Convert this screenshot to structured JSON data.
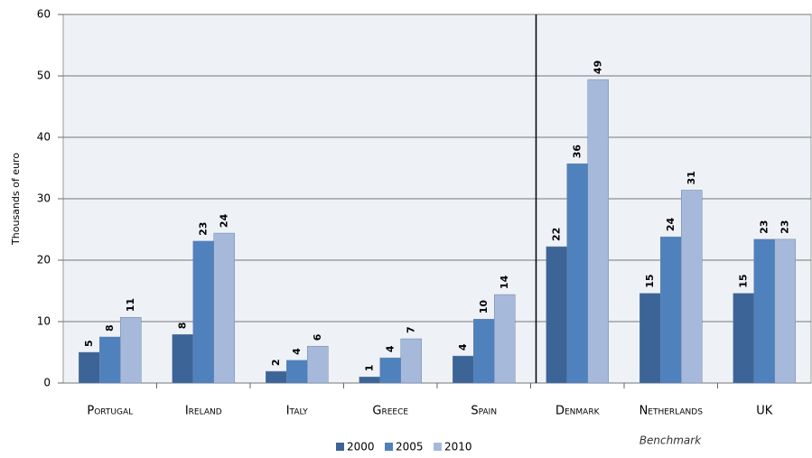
{
  "chart_data": {
    "type": "bar",
    "ylabel": "Thousands of euro",
    "annotation": "Benchmark",
    "categories": [
      "Portugal",
      "Ireland",
      "Italy",
      "Greece",
      "Spain",
      "Denmark",
      "Netherlands",
      "UK"
    ],
    "series": [
      {
        "name": "2000",
        "color": "#3d6496",
        "values": [
          5.0,
          7.9,
          1.9,
          1.0,
          4.4,
          22.2,
          14.6,
          14.6
        ],
        "value_labels": [
          "5",
          "8",
          "2",
          "1",
          "4",
          "22",
          "15",
          "15"
        ]
      },
      {
        "name": "2005",
        "color": "#4f81bd",
        "values": [
          7.5,
          23.1,
          3.7,
          4.1,
          10.4,
          35.7,
          23.8,
          23.4
        ],
        "value_labels": [
          "8",
          "23",
          "4",
          "4",
          "10",
          "36",
          "24",
          "23"
        ]
      },
      {
        "name": "2010",
        "color": "#a7b9da",
        "values": [
          10.7,
          24.4,
          6.0,
          7.2,
          14.4,
          49.4,
          31.4,
          23.4
        ],
        "value_labels": [
          "11",
          "24",
          "6",
          "7",
          "14",
          "49",
          "31",
          "23"
        ]
      }
    ],
    "ylim": [
      0,
      60
    ],
    "yticks": [
      0,
      10,
      20,
      30,
      40,
      50,
      60
    ],
    "grid": true
  }
}
